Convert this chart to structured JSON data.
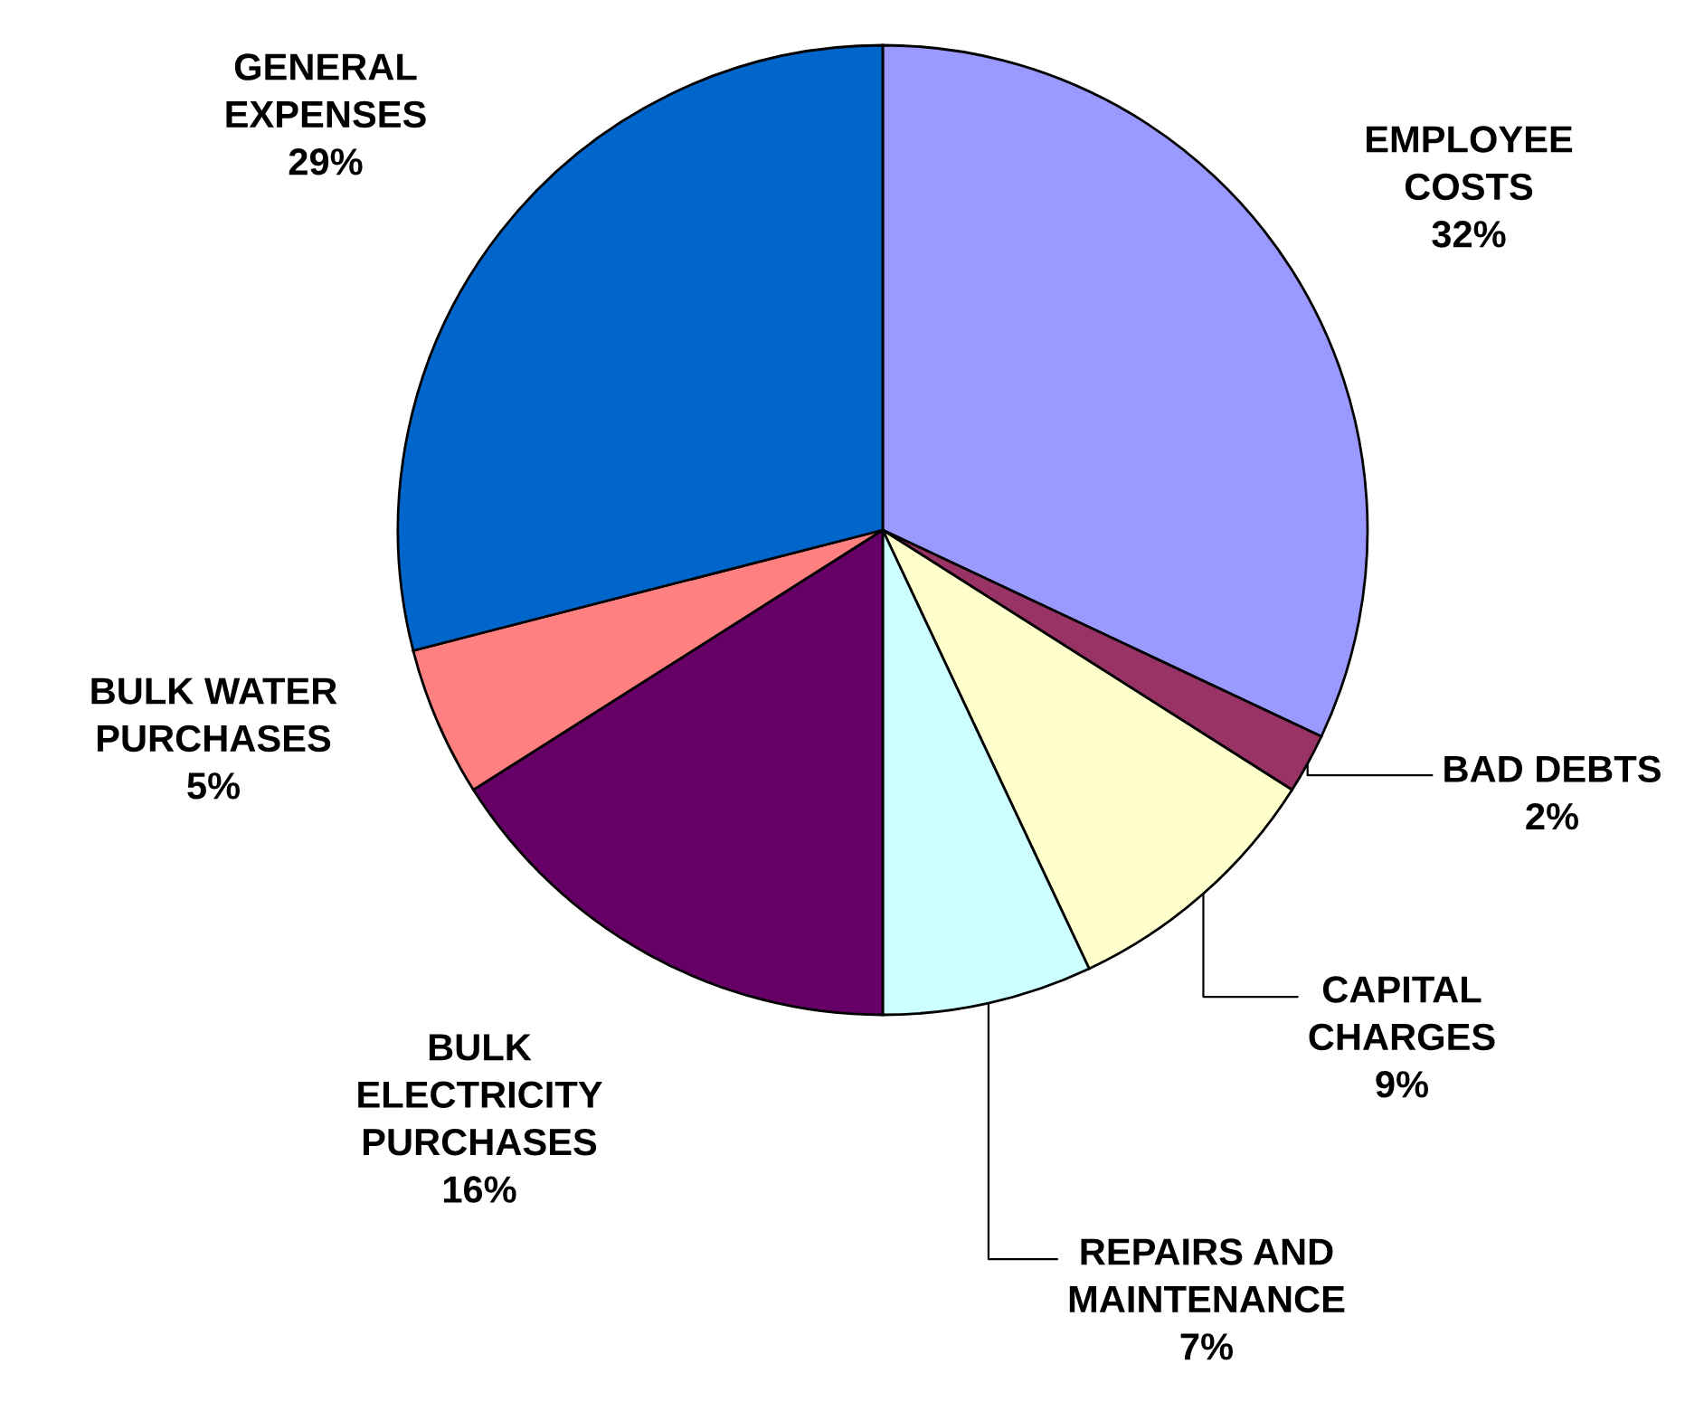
{
  "chart_data": {
    "type": "pie",
    "categories": [
      "EMPLOYEE\nCOSTS",
      "BAD DEBTS",
      "CAPITAL\nCHARGES",
      "REPAIRS AND\nMAINTENANCE",
      "BULK\nELECTRICITY\nPURCHASES",
      "BULK WATER\nPURCHASES",
      "GENERAL\nEXPENSES"
    ],
    "values": [
      32,
      2,
      9,
      7,
      16,
      5,
      29
    ],
    "colors": [
      "#9999ff",
      "#993366",
      "#ffffcc",
      "#ccffff",
      "#660066",
      "#ff8080",
      "#0066cc"
    ],
    "value_labels": [
      "32%",
      "2%",
      "9%",
      "7%",
      "16%",
      "5%",
      "29%"
    ]
  }
}
